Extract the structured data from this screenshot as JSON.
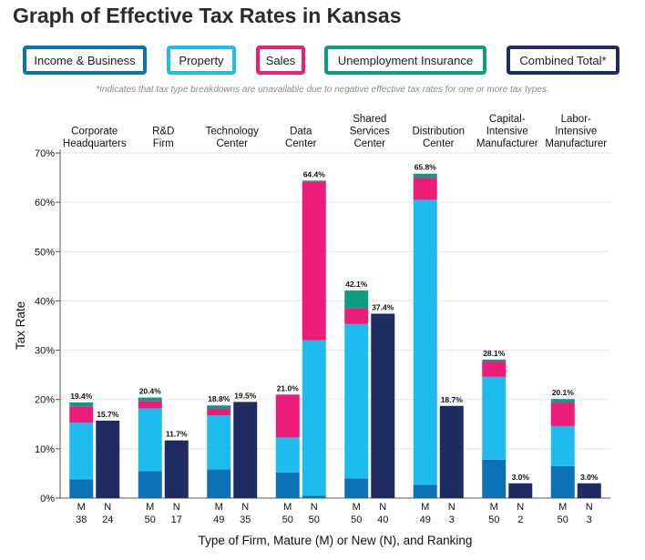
{
  "title": "Graph of Effective Tax Rates in Kansas",
  "legend": [
    {
      "label": "Income & Business",
      "color": "#0a72b5"
    },
    {
      "label": "Property",
      "color": "#1ebbef"
    },
    {
      "label": "Sales",
      "color": "#ee1c79"
    },
    {
      "label": "Unemployment Insurance",
      "color": "#0d9b83"
    },
    {
      "label": "Combined Total*",
      "color": "#1e2c62"
    }
  ],
  "note": "*Indicates that tax type breakdowns are unavailable due to negative effective tax rates for one or more tax types.",
  "chart_data": {
    "type": "bar",
    "stacked": true,
    "ylabel": "Tax Rate",
    "xlabel": "Type of Firm, Mature (M) or New (N), and Ranking",
    "ylim": [
      0,
      70
    ],
    "yticks": [
      "0%",
      "10%",
      "20%",
      "30%",
      "40%",
      "50%",
      "60%",
      "70%"
    ],
    "categories": [
      {
        "label": [
          "Corporate",
          "Headquarters"
        ],
        "bars": [
          {
            "type": "M",
            "rank": "38",
            "total_label": "19.4%",
            "stack": [
              3.8,
              11.5,
              3.3,
              0.8
            ]
          },
          {
            "type": "N",
            "rank": "24",
            "total_label": "15.7%",
            "total": 15.7
          }
        ]
      },
      {
        "label": [
          "R&D",
          "Firm"
        ],
        "bars": [
          {
            "type": "M",
            "rank": "50",
            "total_label": "20.4%",
            "stack": [
              5.5,
              12.7,
              1.5,
              0.7
            ]
          },
          {
            "type": "N",
            "rank": "17",
            "total_label": "11.7%",
            "total": 11.7
          }
        ]
      },
      {
        "label": [
          "Technology",
          "Center"
        ],
        "bars": [
          {
            "type": "M",
            "rank": "49",
            "total_label": "18.8%",
            "stack": [
              5.8,
              11.0,
              1.3,
              0.7
            ]
          },
          {
            "type": "N",
            "rank": "35",
            "total_label": "19.5%",
            "total": 19.5
          }
        ]
      },
      {
        "label": [
          "Data",
          "Center"
        ],
        "bars": [
          {
            "type": "M",
            "rank": "50",
            "total_label": "21.0%",
            "stack": [
              5.2,
              7.1,
              8.7,
              0.0
            ]
          },
          {
            "type": "N",
            "rank": "50",
            "total_label": "64.4%",
            "stack": [
              0.5,
              31.5,
              32.2,
              0.2
            ]
          }
        ]
      },
      {
        "label": [
          "Shared",
          "Services",
          "Center"
        ],
        "bars": [
          {
            "type": "M",
            "rank": "50",
            "total_label": "42.1%",
            "stack": [
              4.0,
              31.3,
              3.2,
              3.6
            ]
          },
          {
            "type": "N",
            "rank": "40",
            "total_label": "37.4%",
            "total": 37.4
          }
        ]
      },
      {
        "label": [
          "Distribution",
          "Center"
        ],
        "bars": [
          {
            "type": "M",
            "rank": "49",
            "total_label": "65.8%",
            "stack": [
              2.7,
              57.8,
              4.5,
              0.8
            ]
          },
          {
            "type": "N",
            "rank": "3",
            "total_label": "18.7%",
            "total": 18.7
          }
        ]
      },
      {
        "label": [
          "Capital-",
          "Intensive",
          "Manufacturer"
        ],
        "bars": [
          {
            "type": "M",
            "rank": "50",
            "total_label": "28.1%",
            "stack": [
              7.8,
              16.8,
              3.1,
              0.4
            ]
          },
          {
            "type": "N",
            "rank": "2",
            "total_label": "3.0%",
            "total": 3.0
          }
        ]
      },
      {
        "label": [
          "Labor-",
          "Intensive",
          "Manufacturer"
        ],
        "bars": [
          {
            "type": "M",
            "rank": "50",
            "total_label": "20.1%",
            "stack": [
              6.5,
              8.1,
              4.8,
              0.7
            ]
          },
          {
            "type": "N",
            "rank": "3",
            "total_label": "3.0%",
            "total": 3.0
          }
        ]
      }
    ]
  }
}
